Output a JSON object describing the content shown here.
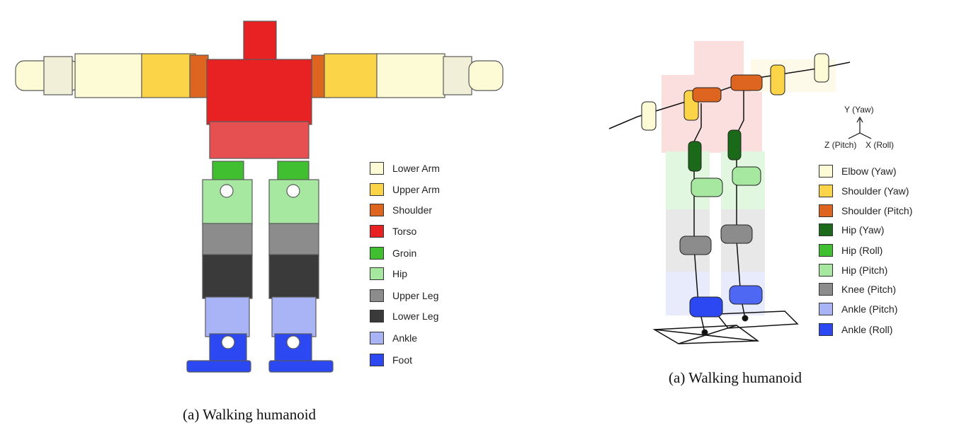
{
  "figure_left": {
    "caption": "(a)  Walking humanoid",
    "legend": [
      {
        "label": "Lower Arm",
        "color": "#fdfbd6"
      },
      {
        "label": "Upper Arm",
        "color": "#fbd448"
      },
      {
        "label": "Shoulder",
        "color": "#de6520"
      },
      {
        "label": "Torso",
        "color": "#e82222"
      },
      {
        "label": "Groin",
        "color": "#40c030"
      },
      {
        "label": "Hip",
        "color": "#a6e8a0"
      },
      {
        "label": "Upper Leg",
        "color": "#8c8c8c"
      },
      {
        "label": "Lower Leg",
        "color": "#3a3a3a"
      },
      {
        "label": "Ankle",
        "color": "#a8b4f6"
      },
      {
        "label": "Foot",
        "color": "#2c48f2"
      }
    ]
  },
  "figure_right": {
    "caption": "(a)  Walking humanoid",
    "axes": {
      "y": "Y (Yaw)",
      "z": "Z (Pitch)",
      "x": "X (Roll)"
    },
    "legend": [
      {
        "label": "Elbow (Yaw)",
        "color": "#fdfbd6"
      },
      {
        "label": "Shoulder (Yaw)",
        "color": "#fbd448"
      },
      {
        "label": "Shoulder (Pitch)",
        "color": "#de6520"
      },
      {
        "label": "Hip (Yaw)",
        "color": "#1a6a1a"
      },
      {
        "label": "Hip (Roll)",
        "color": "#40c030"
      },
      {
        "label": "Hip (Pitch)",
        "color": "#a6e8a0"
      },
      {
        "label": "Knee (Pitch)",
        "color": "#8c8c8c"
      },
      {
        "label": "Ankle (Pitch)",
        "color": "#a8b4f6"
      },
      {
        "label": "Ankle (Roll)",
        "color": "#2c48f2"
      }
    ]
  }
}
